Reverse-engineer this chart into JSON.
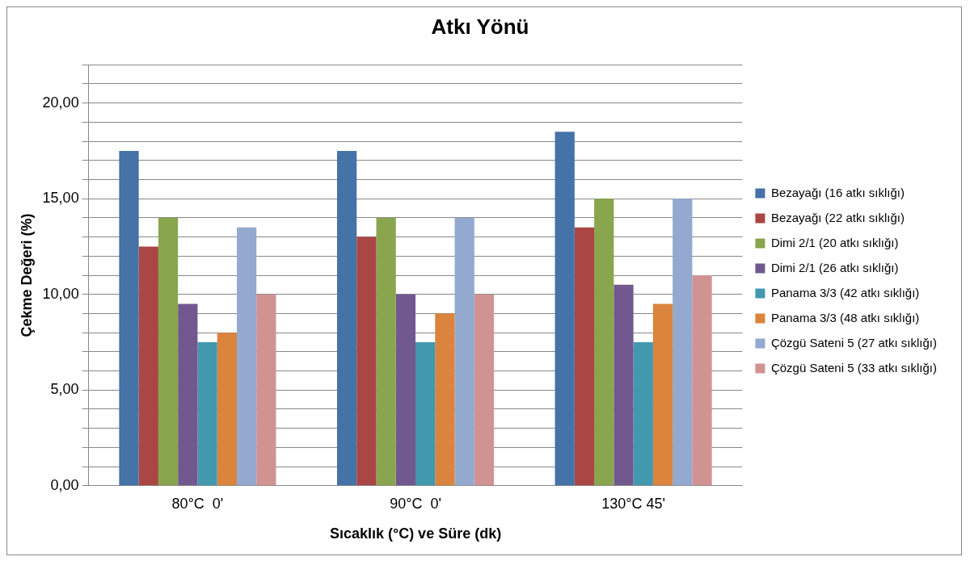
{
  "chart_data": {
    "type": "bar",
    "title": "Atkı Yönü",
    "xlabel": "Sıcaklık (°C) ve Süre (dk)",
    "ylabel": "Çekme Değeri (%)",
    "categories": [
      "80°C  0'",
      "90°C  0'",
      "130°C 45'"
    ],
    "series": [
      {
        "name": "Bezayağı (16 atkı sıklığı)",
        "color": "#4572a7",
        "values": [
          17.5,
          17.5,
          18.5
        ]
      },
      {
        "name": "Bezayağı (22 atkı sıklığı)",
        "color": "#aa4643",
        "values": [
          12.5,
          13,
          13.5
        ]
      },
      {
        "name": "Dimi 2/1 (20 atkı sıklığı)",
        "color": "#89a54e",
        "values": [
          14,
          14,
          15
        ]
      },
      {
        "name": "Dimi 2/1 (26 atkı sıklığı)",
        "color": "#71588f",
        "values": [
          9.5,
          10,
          10.5
        ]
      },
      {
        "name": "Panama 3/3 (42 atkı sıklığı)",
        "color": "#4198af",
        "values": [
          7.5,
          7.5,
          7.5
        ]
      },
      {
        "name": "Panama 3/3 (48 atkı sıklığı)",
        "color": "#db843d",
        "values": [
          8,
          9,
          9.5
        ]
      },
      {
        "name": "Çözgü Sateni 5 (27 atkı sıklığı)",
        "color": "#93a9cf",
        "values": [
          13.5,
          14,
          15
        ]
      },
      {
        "name": "Çözgü Sateni 5 (33 atkı sıklığı)",
        "color": "#d19392",
        "values": [
          10,
          10,
          11
        ]
      }
    ],
    "ylim": [
      0,
      22
    ],
    "yticks": [
      {
        "value": 0,
        "label": "0,00"
      },
      {
        "value": 1,
        "label": null
      },
      {
        "value": 2,
        "label": null
      },
      {
        "value": 3,
        "label": null
      },
      {
        "value": 4,
        "label": null
      },
      {
        "value": 5,
        "label": "5,00"
      },
      {
        "value": 6,
        "label": null
      },
      {
        "value": 7,
        "label": null
      },
      {
        "value": 8,
        "label": null
      },
      {
        "value": 9,
        "label": null
      },
      {
        "value": 10,
        "label": "10,00"
      },
      {
        "value": 11,
        "label": null
      },
      {
        "value": 12,
        "label": null
      },
      {
        "value": 13,
        "label": null
      },
      {
        "value": 14,
        "label": null
      },
      {
        "value": 15,
        "label": "15,00"
      },
      {
        "value": 16,
        "label": null
      },
      {
        "value": 17,
        "label": null
      },
      {
        "value": 18,
        "label": null
      },
      {
        "value": 19,
        "label": null
      },
      {
        "value": 20,
        "label": "20,00"
      },
      {
        "value": 21,
        "label": null
      },
      {
        "value": 22,
        "label": null
      }
    ],
    "grid": "y",
    "legend": "right"
  }
}
